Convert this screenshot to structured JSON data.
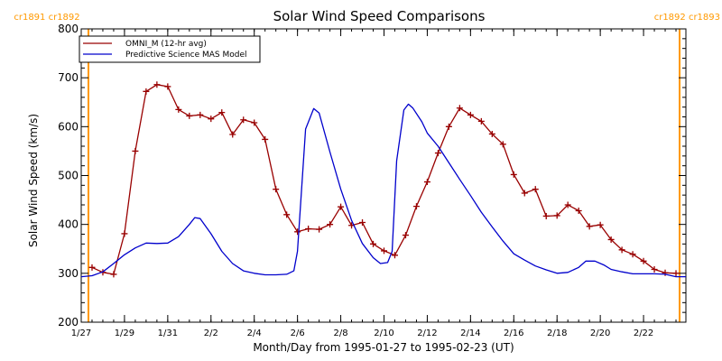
{
  "colors": {
    "omni": "#990000",
    "model": "#0000cc",
    "carrington": "#ff9900",
    "axis": "#000000"
  },
  "chart_data": {
    "type": "line",
    "title": "Solar Wind Speed Comparisons",
    "xlabel": "Month/Day from 1995-01-27 to 1995-02-23 (UT)",
    "ylabel": "Solar Wind Speed (km/s)",
    "xlim": [
      "1995-01-27",
      "1995-02-23T23:00"
    ],
    "ylim": [
      200,
      800
    ],
    "yticks": [
      200,
      300,
      400,
      500,
      600,
      700,
      800
    ],
    "xticks": [
      {
        "date": "1995-01-27",
        "label": "1/27"
      },
      {
        "date": "1995-01-29",
        "label": "1/29"
      },
      {
        "date": "1995-01-31",
        "label": "1/31"
      },
      {
        "date": "1995-02-02",
        "label": "2/2"
      },
      {
        "date": "1995-02-04",
        "label": "2/4"
      },
      {
        "date": "1995-02-06",
        "label": "2/6"
      },
      {
        "date": "1995-02-08",
        "label": "2/8"
      },
      {
        "date": "1995-02-10",
        "label": "2/10"
      },
      {
        "date": "1995-02-12",
        "label": "2/12"
      },
      {
        "date": "1995-02-14",
        "label": "2/14"
      },
      {
        "date": "1995-02-16",
        "label": "2/16"
      },
      {
        "date": "1995-02-18",
        "label": "2/18"
      },
      {
        "date": "1995-02-20",
        "label": "2/20"
      },
      {
        "date": "1995-02-22",
        "label": "2/22"
      }
    ],
    "grid": false,
    "legend_position": "top-left",
    "carrington_markers": [
      {
        "date": "1995-01-27T08:00",
        "label": "cr1891 cr1892",
        "side": "left"
      },
      {
        "date": "1995-02-23T16:00",
        "label": "cr1892 cr1893",
        "side": "right"
      }
    ],
    "series": [
      {
        "name": "OMNI_M (12-hr avg)",
        "color": "#990000",
        "markers": true,
        "points": [
          [
            "1995-01-27T12:00",
            312
          ],
          [
            "1995-01-28T00:00",
            302
          ],
          [
            "1995-01-28T12:00",
            298
          ],
          [
            "1995-01-29T00:00",
            381
          ],
          [
            "1995-01-29T12:00",
            550
          ],
          [
            "1995-01-30T00:00",
            672
          ],
          [
            "1995-01-30T12:00",
            686
          ],
          [
            "1995-01-31T00:00",
            682
          ],
          [
            "1995-01-31T12:00",
            635
          ],
          [
            "1995-02-01T00:00",
            622
          ],
          [
            "1995-02-01T12:00",
            624
          ],
          [
            "1995-02-02T00:00",
            616
          ],
          [
            "1995-02-02T12:00",
            629
          ],
          [
            "1995-02-03T00:00",
            584
          ],
          [
            "1995-02-03T12:00",
            614
          ],
          [
            "1995-02-04T00:00",
            608
          ],
          [
            "1995-02-04T12:00",
            574
          ],
          [
            "1995-02-05T00:00",
            472
          ],
          [
            "1995-02-05T12:00",
            420
          ],
          [
            "1995-02-06T00:00",
            385
          ],
          [
            "1995-02-06T12:00",
            391
          ],
          [
            "1995-02-07T00:00",
            390
          ],
          [
            "1995-02-07T12:00",
            400
          ],
          [
            "1995-02-08T00:00",
            436
          ],
          [
            "1995-02-08T12:00",
            398
          ],
          [
            "1995-02-09T00:00",
            404
          ],
          [
            "1995-02-09T12:00",
            360
          ],
          [
            "1995-02-10T00:00",
            346
          ],
          [
            "1995-02-10T12:00",
            337
          ],
          [
            "1995-02-11T00:00",
            378
          ],
          [
            "1995-02-11T12:00",
            437
          ],
          [
            "1995-02-12T00:00",
            487
          ],
          [
            "1995-02-12T12:00",
            546
          ],
          [
            "1995-02-13T00:00",
            600
          ],
          [
            "1995-02-13T12:00",
            638
          ],
          [
            "1995-02-14T00:00",
            624
          ],
          [
            "1995-02-14T12:00",
            611
          ],
          [
            "1995-02-15T00:00",
            585
          ],
          [
            "1995-02-15T12:00",
            564
          ],
          [
            "1995-02-16T00:00",
            502
          ],
          [
            "1995-02-16T12:00",
            464
          ],
          [
            "1995-02-17T00:00",
            472
          ],
          [
            "1995-02-17T12:00",
            417
          ],
          [
            "1995-02-18T00:00",
            418
          ],
          [
            "1995-02-18T12:00",
            440
          ],
          [
            "1995-02-19T00:00",
            428
          ],
          [
            "1995-02-19T12:00",
            396
          ],
          [
            "1995-02-20T00:00",
            399
          ],
          [
            "1995-02-20T12:00",
            369
          ],
          [
            "1995-02-21T00:00",
            348
          ],
          [
            "1995-02-21T12:00",
            339
          ],
          [
            "1995-02-22T00:00",
            325
          ],
          [
            "1995-02-22T12:00",
            308
          ],
          [
            "1995-02-23T00:00",
            301
          ],
          [
            "1995-02-23T12:00",
            300
          ]
        ]
      },
      {
        "name": "Predictive Science MAS Model",
        "color": "#0000cc",
        "markers": false,
        "points": [
          [
            "1995-01-27T00:00",
            293
          ],
          [
            "1995-01-27T12:00",
            295
          ],
          [
            "1995-01-28T00:00",
            303
          ],
          [
            "1995-01-28T12:00",
            320
          ],
          [
            "1995-01-29T00:00",
            338
          ],
          [
            "1995-01-29T12:00",
            352
          ],
          [
            "1995-01-30T00:00",
            362
          ],
          [
            "1995-01-30T12:00",
            361
          ],
          [
            "1995-01-31T00:00",
            362
          ],
          [
            "1995-01-31T12:00",
            375
          ],
          [
            "1995-02-01T00:00",
            400
          ],
          [
            "1995-02-01T06:00",
            414
          ],
          [
            "1995-02-01T12:00",
            412
          ],
          [
            "1995-02-02T00:00",
            381
          ],
          [
            "1995-02-02T12:00",
            345
          ],
          [
            "1995-02-03T00:00",
            320
          ],
          [
            "1995-02-03T12:00",
            305
          ],
          [
            "1995-02-04T00:00",
            300
          ],
          [
            "1995-02-04T12:00",
            297
          ],
          [
            "1995-02-05T00:00",
            297
          ],
          [
            "1995-02-05T12:00",
            298
          ],
          [
            "1995-02-05T20:00",
            305
          ],
          [
            "1995-02-06T00:00",
            345
          ],
          [
            "1995-02-06T09:00",
            595
          ],
          [
            "1995-02-06T18:00",
            637
          ],
          [
            "1995-02-07T00:00",
            628
          ],
          [
            "1995-02-07T12:00",
            548
          ],
          [
            "1995-02-08T00:00",
            472
          ],
          [
            "1995-02-08T12:00",
            408
          ],
          [
            "1995-02-09T00:00",
            361
          ],
          [
            "1995-02-09T12:00",
            332
          ],
          [
            "1995-02-09T20:00",
            320
          ],
          [
            "1995-02-10T04:00",
            322
          ],
          [
            "1995-02-10T09:00",
            345
          ],
          [
            "1995-02-10T14:00",
            530
          ],
          [
            "1995-02-10T22:00",
            634
          ],
          [
            "1995-02-11T03:00",
            646
          ],
          [
            "1995-02-11T08:00",
            638
          ],
          [
            "1995-02-11T18:00",
            610
          ],
          [
            "1995-02-12T00:00",
            587
          ],
          [
            "1995-02-12T12:00",
            560
          ],
          [
            "1995-02-13T00:00",
            526
          ],
          [
            "1995-02-13T12:00",
            492
          ],
          [
            "1995-02-14T00:00",
            459
          ],
          [
            "1995-02-14T12:00",
            425
          ],
          [
            "1995-02-15T00:00",
            395
          ],
          [
            "1995-02-15T12:00",
            366
          ],
          [
            "1995-02-16T00:00",
            340
          ],
          [
            "1995-02-16T12:00",
            327
          ],
          [
            "1995-02-17T00:00",
            315
          ],
          [
            "1995-02-17T12:00",
            307
          ],
          [
            "1995-02-18T00:00",
            300
          ],
          [
            "1995-02-18T12:00",
            302
          ],
          [
            "1995-02-19T00:00",
            312
          ],
          [
            "1995-02-19T08:00",
            325
          ],
          [
            "1995-02-19T18:00",
            325
          ],
          [
            "1995-02-20T04:00",
            317
          ],
          [
            "1995-02-20T12:00",
            308
          ],
          [
            "1995-02-21T00:00",
            303
          ],
          [
            "1995-02-21T12:00",
            299
          ],
          [
            "1995-02-22T00:00",
            299
          ],
          [
            "1995-02-22T12:00",
            299
          ],
          [
            "1995-02-23T00:00",
            298
          ],
          [
            "1995-02-23T12:00",
            293
          ],
          [
            "1995-02-23T23:00",
            293
          ]
        ]
      }
    ]
  }
}
